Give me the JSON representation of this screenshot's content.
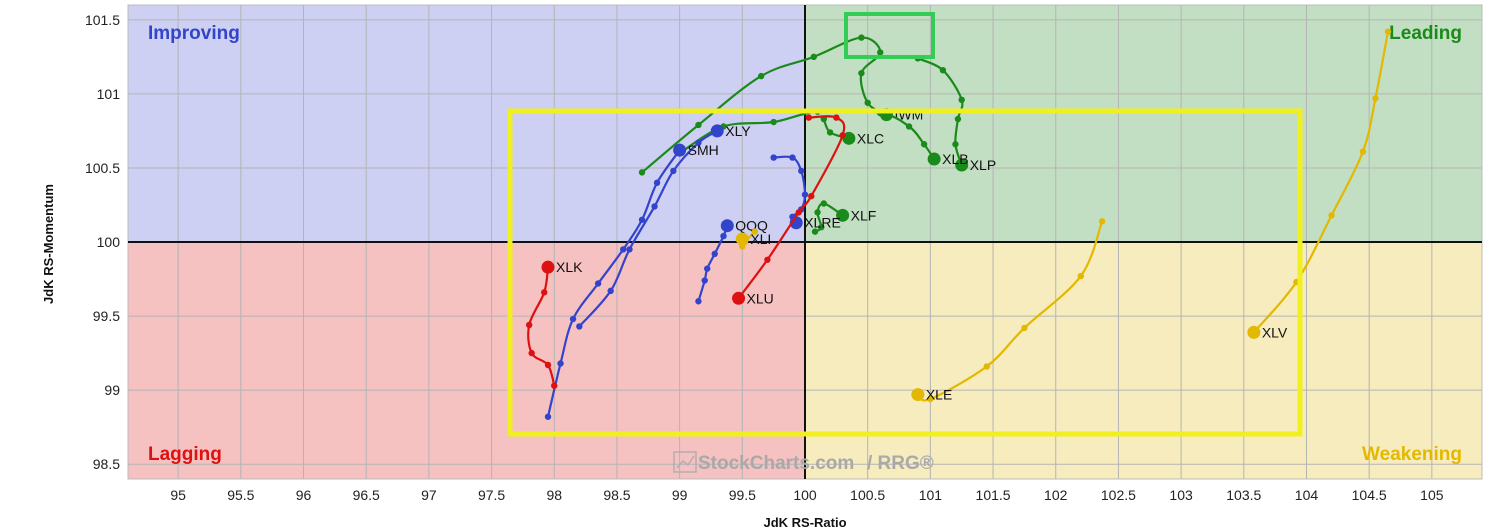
{
  "chart_data": {
    "type": "scatter",
    "xlabel": "JdK RS-Ratio",
    "ylabel": "JdK RS-Momentum",
    "xlim": [
      94.6,
      105.4
    ],
    "ylim": [
      98.4,
      101.6
    ],
    "x_ticks": [
      "95",
      "95.5",
      "96",
      "96.5",
      "97",
      "97.5",
      "98",
      "98.5",
      "99",
      "99.5",
      "100",
      "100.5",
      "101",
      "101.5",
      "102",
      "102.5",
      "103",
      "103.5",
      "104",
      "104.5",
      "105"
    ],
    "y_ticks": [
      "98.5",
      "99",
      "99.5",
      "100",
      "100.5",
      "101",
      "101.5"
    ],
    "grid": true,
    "center": [
      100,
      100
    ],
    "quadrants": {
      "improving": {
        "label": "Improving",
        "bg": "#cdd0f2",
        "color": "#3344cc"
      },
      "leading": {
        "label": "Leading",
        "bg": "#c3dfc3",
        "color": "#1a8a1a"
      },
      "lagging": {
        "label": "Lagging",
        "bg": "#f6c1c1",
        "color": "#dd1111"
      },
      "weakening": {
        "label": "Weakening",
        "bg": "#f7ecbe",
        "color": "#e3b800"
      }
    },
    "watermark": {
      "brand": "StockCharts.com",
      "suffix": "/ RRG®"
    },
    "series": [
      {
        "name": "IWM",
        "color": "#1a8a1a",
        "points": [
          [
            98.7,
            100.47
          ],
          [
            99.15,
            100.79
          ],
          [
            99.65,
            101.12
          ],
          [
            100.07,
            101.25
          ],
          [
            100.45,
            101.38
          ],
          [
            100.6,
            101.28
          ],
          [
            100.45,
            101.14
          ],
          [
            100.5,
            100.94
          ],
          [
            100.65,
            100.86
          ]
        ]
      },
      {
        "name": "XLP",
        "color": "#1a8a1a",
        "points": [
          [
            100.9,
            101.24
          ],
          [
            101.1,
            101.16
          ],
          [
            101.25,
            100.96
          ],
          [
            101.22,
            100.83
          ],
          [
            101.2,
            100.66
          ],
          [
            101.25,
            100.52
          ]
        ]
      },
      {
        "name": "XLB",
        "color": "#1a8a1a",
        "points": [
          [
            99.0,
            100.6
          ],
          [
            99.35,
            100.78
          ],
          [
            99.75,
            100.81
          ],
          [
            100.1,
            100.88
          ],
          [
            100.6,
            100.87
          ],
          [
            100.83,
            100.78
          ],
          [
            100.95,
            100.66
          ],
          [
            101.03,
            100.56
          ]
        ]
      },
      {
        "name": "XLC",
        "color": "#1a8a1a",
        "points": [
          [
            100.15,
            100.83
          ],
          [
            100.2,
            100.74
          ],
          [
            100.35,
            100.7
          ]
        ]
      },
      {
        "name": "XLF",
        "color": "#1a8a1a",
        "points": [
          [
            100.08,
            100.07
          ],
          [
            100.13,
            100.1
          ],
          [
            100.1,
            100.2
          ],
          [
            100.15,
            100.26
          ],
          [
            100.3,
            100.18
          ]
        ]
      },
      {
        "name": "XLY",
        "color": "#3344cc",
        "points": [
          [
            98.2,
            99.43
          ],
          [
            98.45,
            99.67
          ],
          [
            98.6,
            99.95
          ],
          [
            98.8,
            100.24
          ],
          [
            98.95,
            100.48
          ],
          [
            99.15,
            100.67
          ],
          [
            99.3,
            100.75
          ]
        ]
      },
      {
        "name": "SMH",
        "color": "#3344cc",
        "points": [
          [
            97.95,
            98.82
          ],
          [
            98.05,
            99.18
          ],
          [
            98.15,
            99.48
          ],
          [
            98.35,
            99.72
          ],
          [
            98.55,
            99.95
          ],
          [
            98.7,
            100.15
          ],
          [
            98.82,
            100.4
          ],
          [
            99.0,
            100.62
          ]
        ]
      },
      {
        "name": "XLRE",
        "color": "#3344cc",
        "points": [
          [
            99.75,
            100.57
          ],
          [
            99.9,
            100.57
          ],
          [
            99.97,
            100.48
          ],
          [
            100.0,
            100.32
          ],
          [
            99.97,
            100.22
          ],
          [
            99.9,
            100.17
          ],
          [
            99.93,
            100.13
          ]
        ]
      },
      {
        "name": "QQQ",
        "color": "#3344cc",
        "points": [
          [
            99.15,
            99.6
          ],
          [
            99.2,
            99.74
          ],
          [
            99.22,
            99.82
          ],
          [
            99.28,
            99.92
          ],
          [
            99.35,
            100.04
          ],
          [
            99.38,
            100.11
          ]
        ]
      },
      {
        "name": "XLK",
        "color": "#dd1111",
        "points": [
          [
            98.0,
            99.03
          ],
          [
            97.95,
            99.17
          ],
          [
            97.82,
            99.25
          ],
          [
            97.8,
            99.44
          ],
          [
            97.92,
            99.66
          ],
          [
            97.95,
            99.83
          ]
        ]
      },
      {
        "name": "XLU",
        "color": "#dd1111",
        "points": [
          [
            100.03,
            100.84
          ],
          [
            100.25,
            100.84
          ],
          [
            100.3,
            100.72
          ],
          [
            100.05,
            100.31
          ],
          [
            99.95,
            100.2
          ],
          [
            99.7,
            99.88
          ],
          [
            99.47,
            99.62
          ]
        ]
      },
      {
        "name": "XLI",
        "color": "#e3b800",
        "points": [
          [
            99.6,
            100.07
          ],
          [
            99.52,
            100.0
          ],
          [
            99.5,
            99.97
          ],
          [
            99.5,
            100.02
          ]
        ]
      },
      {
        "name": "XLE",
        "color": "#e3b800",
        "points": [
          [
            102.37,
            100.14
          ],
          [
            102.2,
            99.77
          ],
          [
            101.75,
            99.42
          ],
          [
            101.45,
            99.16
          ],
          [
            101.0,
            98.94
          ],
          [
            100.9,
            98.97
          ]
        ]
      },
      {
        "name": "XLV",
        "color": "#e3b800",
        "points": [
          [
            104.65,
            101.42
          ],
          [
            104.55,
            100.97
          ],
          [
            104.45,
            100.61
          ],
          [
            104.2,
            100.18
          ],
          [
            103.92,
            99.73
          ],
          [
            103.58,
            99.39
          ]
        ]
      }
    ]
  }
}
